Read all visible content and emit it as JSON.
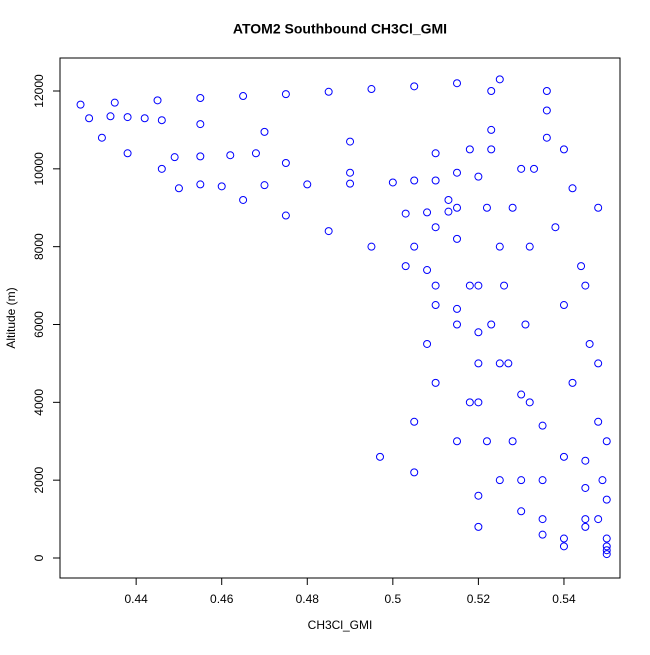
{
  "chart_data": {
    "type": "scatter",
    "title": "ATOM2 Southbound CH3Cl_GMI",
    "x_label": "CH3Cl_GMI",
    "y_label": "Altitude (m)",
    "color": "#0000ff",
    "xlim": [
      0.4222,
      0.5531
    ],
    "ylim": [
      -514,
      12848
    ],
    "xticks": [
      0.44,
      0.46,
      0.48,
      0.5,
      0.52,
      0.54
    ],
    "yticks": [
      0,
      2000,
      4000,
      6000,
      8000,
      10000,
      12000
    ],
    "x": [
      0.525,
      0.515,
      0.505,
      0.495,
      0.485,
      0.475,
      0.465,
      0.455,
      0.445,
      0.435,
      0.427,
      0.429,
      0.432,
      0.438,
      0.446,
      0.455,
      0.465,
      0.475,
      0.485,
      0.495,
      0.503,
      0.51,
      0.515,
      0.52,
      0.525,
      0.53,
      0.535,
      0.54,
      0.545,
      0.548,
      0.55,
      0.434,
      0.438,
      0.442,
      0.446,
      0.455,
      0.47,
      0.49,
      0.51,
      0.53,
      0.449,
      0.455,
      0.462,
      0.468,
      0.475,
      0.49,
      0.505,
      0.45,
      0.46,
      0.47,
      0.48,
      0.49,
      0.5,
      0.51,
      0.515,
      0.515,
      0.51,
      0.505,
      0.508,
      0.51,
      0.508,
      0.51,
      0.505,
      0.497,
      0.505,
      0.52,
      0.535,
      0.55,
      0.503,
      0.508,
      0.513,
      0.513,
      0.515,
      0.518,
      0.515,
      0.52,
      0.518,
      0.515,
      0.53,
      0.545,
      0.523,
      0.523,
      0.523,
      0.536,
      0.536,
      0.536,
      0.533,
      0.528,
      0.532,
      0.526,
      0.531,
      0.527,
      0.532,
      0.528,
      0.535,
      0.545,
      0.55,
      0.54,
      0.542,
      0.538,
      0.544,
      0.54,
      0.546,
      0.542,
      0.548,
      0.545,
      0.55,
      0.55,
      0.548,
      0.545,
      0.548,
      0.55,
      0.549,
      0.518,
      0.52,
      0.522,
      0.525,
      0.52,
      0.523,
      0.52,
      0.522,
      0.525,
      0.53,
      0.54,
      0.535,
      0.52,
      0.54
    ],
    "values": [
      12300,
      12200,
      12120,
      12050,
      11980,
      11920,
      11870,
      11820,
      11760,
      11700,
      11650,
      11300,
      10800,
      10400,
      10000,
      9600,
      9200,
      8800,
      8400,
      8000,
      7500,
      7000,
      6400,
      5800,
      5000,
      4200,
      3400,
      2600,
      1800,
      1000,
      300,
      11350,
      11330,
      11300,
      11250,
      11150,
      10950,
      10700,
      10400,
      10000,
      10300,
      10320,
      10350,
      10400,
      10150,
      9900,
      9700,
      9500,
      9550,
      9580,
      9600,
      9620,
      9650,
      9700,
      9900,
      9000,
      8500,
      8000,
      7400,
      6500,
      5500,
      4500,
      3500,
      2600,
      2200,
      1600,
      1000,
      200,
      8850,
      8880,
      8900,
      9200,
      8200,
      7000,
      6000,
      5000,
      4000,
      3000,
      2000,
      800,
      12000,
      11000,
      10500,
      12000,
      11500,
      10800,
      10000,
      9000,
      8000,
      7000,
      6000,
      5000,
      4000,
      3000,
      2000,
      1000,
      100,
      10500,
      9500,
      8500,
      7500,
      6500,
      5500,
      4500,
      3500,
      2500,
      1500,
      500,
      9000,
      7000,
      5000,
      3000,
      2000,
      10500,
      9800,
      9000,
      8000,
      7000,
      6000,
      4000,
      3000,
      2000,
      1200,
      500,
      600,
      800,
      300
    ]
  }
}
